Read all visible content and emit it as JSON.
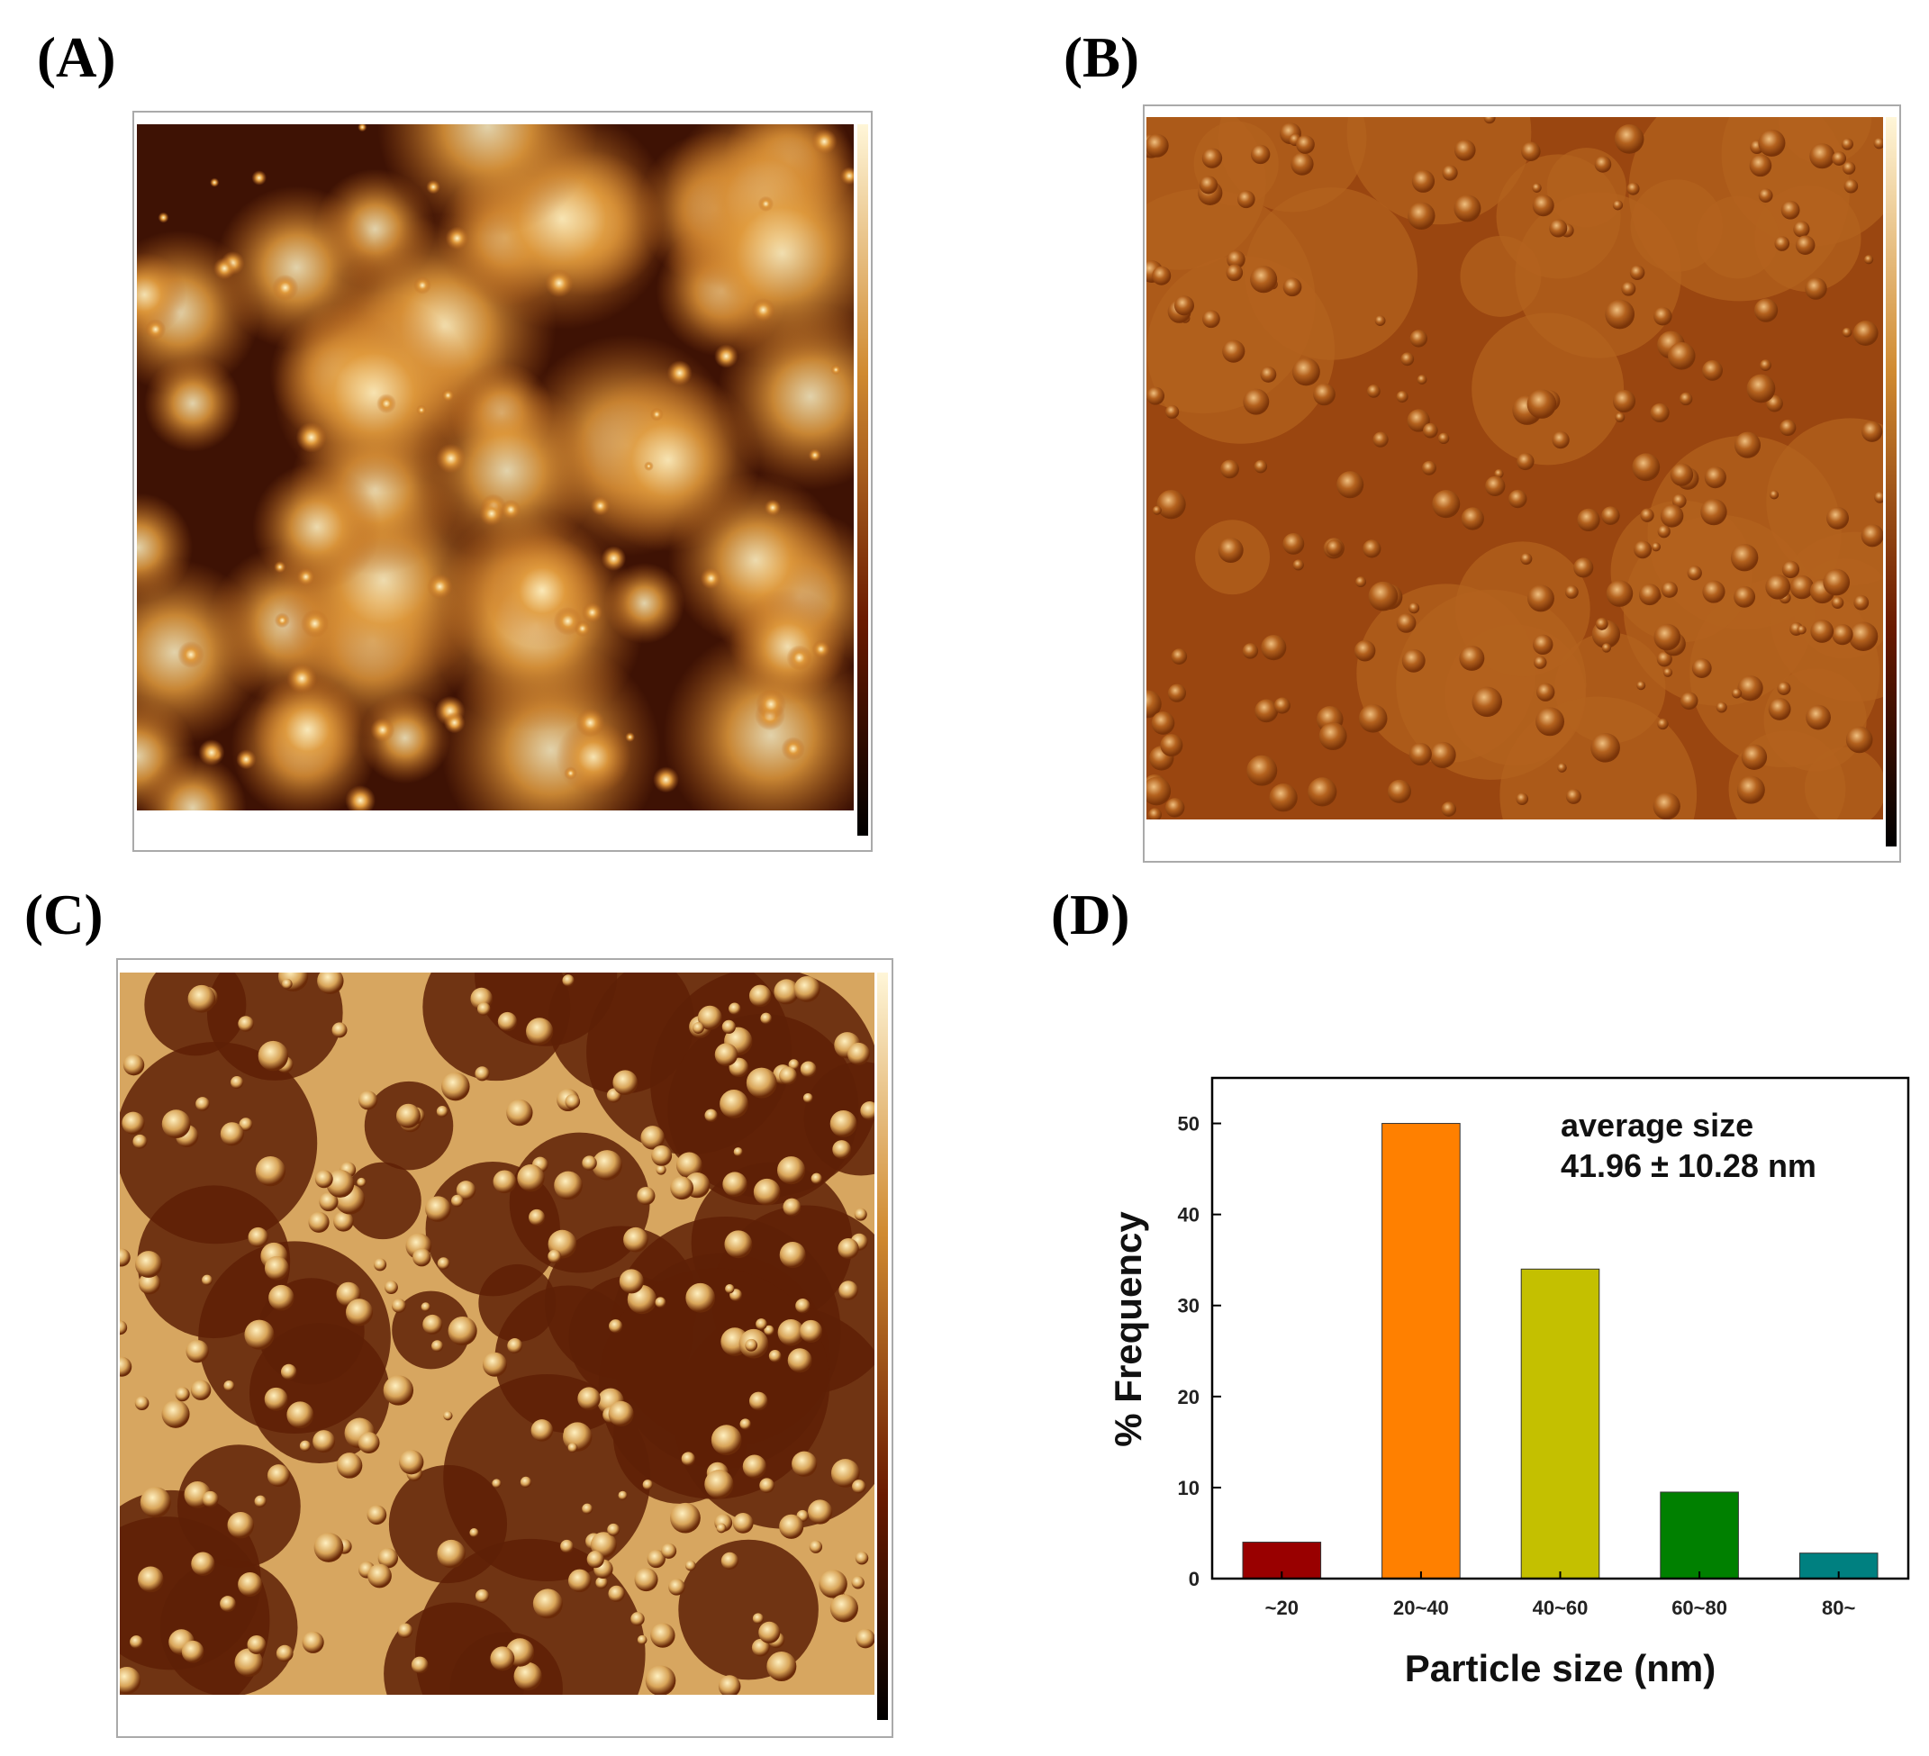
{
  "panels": {
    "a": "(A)",
    "b": "(B)",
    "c": "(C)",
    "d": "(D)"
  },
  "chart_data": {
    "type": "bar",
    "categories": [
      "~20",
      "20~40",
      "40~60",
      "60~80",
      "80~"
    ],
    "values": [
      4,
      50,
      34,
      9.5,
      2.8
    ],
    "colors": [
      "#990000",
      "#ff8000",
      "#c4c000",
      "#008000",
      "#008080"
    ],
    "ylim": [
      0,
      55
    ],
    "yticks": [
      0,
      10,
      20,
      30,
      40,
      50
    ],
    "x_label": "Particle size (nm)",
    "y_label": "% Frequency",
    "annotations": [
      "average size",
      "41.96 ±  10.28 nm"
    ]
  }
}
